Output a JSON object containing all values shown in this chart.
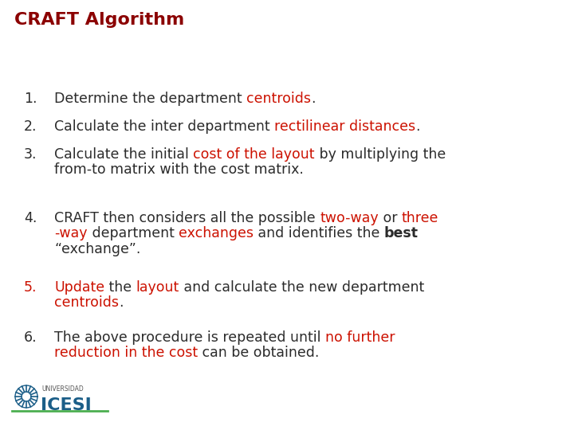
{
  "title": "CRAFT Algorithm",
  "title_color": "#8B0000",
  "title_fontsize": 16,
  "background_color": "#FFFFFF",
  "text_color": "#2B2B2B",
  "highlight_color": "#CC1100",
  "font_size": 12.5,
  "items": [
    {
      "number": "1.",
      "number_color": "#2B2B2B",
      "segments": [
        {
          "text": "Determine the department ",
          "color": "#2B2B2B",
          "bold": false
        },
        {
          "text": "centroids",
          "color": "#CC1100",
          "bold": false
        },
        {
          "text": ".",
          "color": "#2B2B2B",
          "bold": false
        }
      ]
    },
    {
      "number": "2.",
      "number_color": "#2B2B2B",
      "segments": [
        {
          "text": "Calculate the inter department ",
          "color": "#2B2B2B",
          "bold": false
        },
        {
          "text": "rectilinear distances",
          "color": "#CC1100",
          "bold": false
        },
        {
          "text": ".",
          "color": "#2B2B2B",
          "bold": false
        }
      ]
    },
    {
      "number": "3.",
      "number_color": "#2B2B2B",
      "segments": [
        {
          "text": "Calculate the initial ",
          "color": "#2B2B2B",
          "bold": false
        },
        {
          "text": "cost of the layout",
          "color": "#CC1100",
          "bold": false
        },
        {
          "text": " by multiplying the",
          "color": "#2B2B2B",
          "bold": false
        }
      ],
      "continuation": [
        {
          "text": "from-to matrix with the cost matrix.",
          "color": "#2B2B2B",
          "bold": false
        }
      ]
    },
    {
      "number": "4.",
      "number_color": "#2B2B2B",
      "segments": [
        {
          "text": "CRAFT then considers all the possible ",
          "color": "#2B2B2B",
          "bold": false
        },
        {
          "text": "two-way",
          "color": "#CC1100",
          "bold": false
        },
        {
          "text": " or ",
          "color": "#2B2B2B",
          "bold": false
        },
        {
          "text": "three",
          "color": "#CC1100",
          "bold": false
        }
      ],
      "continuation": [
        {
          "text": "-way",
          "color": "#CC1100",
          "bold": false
        },
        {
          "text": " department ",
          "color": "#2B2B2B",
          "bold": false
        },
        {
          "text": "exchanges",
          "color": "#CC1100",
          "bold": false
        },
        {
          "text": " and identifies the ",
          "color": "#2B2B2B",
          "bold": false
        },
        {
          "text": "best",
          "color": "#2B2B2B",
          "bold": true
        }
      ],
      "continuation2": [
        {
          "text": "“exchange”.",
          "color": "#2B2B2B",
          "bold": false
        }
      ]
    },
    {
      "number": "5.",
      "number_color": "#CC1100",
      "segments": [
        {
          "text": "Update",
          "color": "#CC1100",
          "bold": false
        },
        {
          "text": " the ",
          "color": "#2B2B2B",
          "bold": false
        },
        {
          "text": "layout",
          "color": "#CC1100",
          "bold": false
        },
        {
          "text": " and calculate the new department",
          "color": "#2B2B2B",
          "bold": false
        }
      ],
      "continuation": [
        {
          "text": "centroids",
          "color": "#CC1100",
          "bold": false
        },
        {
          "text": ".",
          "color": "#2B2B2B",
          "bold": false
        }
      ]
    },
    {
      "number": "6.",
      "number_color": "#2B2B2B",
      "segments": [
        {
          "text": "The above procedure is repeated until ",
          "color": "#2B2B2B",
          "bold": false
        },
        {
          "text": "no further",
          "color": "#CC1100",
          "bold": false
        }
      ],
      "continuation": [
        {
          "text": "reduction in the cost",
          "color": "#CC1100",
          "bold": false
        },
        {
          "text": " can be obtained.",
          "color": "#2B2B2B",
          "bold": false
        }
      ]
    }
  ],
  "logo_icesi_color": "#1B5E88",
  "logo_universidad_color": "#555555",
  "logo_line_color": "#4CAF50"
}
